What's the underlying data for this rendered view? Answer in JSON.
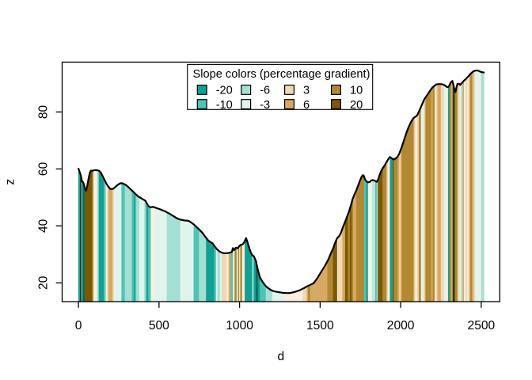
{
  "chart_data": {
    "type": "area",
    "title": "",
    "xlabel": "d",
    "ylabel": "z",
    "x_ticks": [
      0,
      500,
      1000,
      1500,
      2000,
      2500
    ],
    "y_ticks": [
      20,
      40,
      60,
      80
    ],
    "xlim": [
      -101.2,
      2615.1
    ],
    "ylim": [
      13.4,
      97.5
    ],
    "grid": false,
    "line_color": "#000000",
    "box_color": "#000000",
    "background": "#ffffff",
    "legend": {
      "title": "Slope colors (percentage gradient)",
      "position": "top-center",
      "columns": 4,
      "entries": [
        {
          "label": "-20",
          "color_id": "m20"
        },
        {
          "label": "-10",
          "color_id": "m10"
        },
        {
          "label": "-6",
          "color_id": "m6"
        },
        {
          "label": "-3",
          "color_id": "m3"
        },
        {
          "label": "3",
          "color_id": "p3"
        },
        {
          "label": "6",
          "color_id": "p6"
        },
        {
          "label": "10",
          "color_id": "p10"
        },
        {
          "label": "20",
          "color_id": "p20"
        }
      ]
    },
    "palette": {
      "m30": "#0B4237",
      "m25": "#0C6B5E",
      "m20": "#0FA294",
      "m10": "#4EC4B4",
      "m6": "#A3DFD2",
      "m3": "#E0F4ED",
      "flat": "#F9EEE0",
      "p3": "#F0D8B5",
      "p6": "#D8A963",
      "p10": "#B3892F",
      "p20": "#7C5900"
    },
    "profile": [
      [
        0,
        60.1
      ],
      [
        6,
        59.2
      ],
      [
        14,
        57.9
      ],
      [
        22,
        55.7
      ],
      [
        28,
        55.4
      ],
      [
        34,
        54.6
      ],
      [
        40,
        53.2
      ],
      [
        47,
        52.4
      ],
      [
        53,
        53.6
      ],
      [
        59,
        55.4
      ],
      [
        65,
        57.2
      ],
      [
        71,
        58.7
      ],
      [
        77,
        59.4
      ],
      [
        85,
        59.3
      ],
      [
        93,
        59.5
      ],
      [
        106,
        59.6
      ],
      [
        119,
        59.5
      ],
      [
        129,
        59.3
      ],
      [
        139,
        58.7
      ],
      [
        148,
        57.7
      ],
      [
        158,
        56.6
      ],
      [
        168,
        55.4
      ],
      [
        178,
        54.4
      ],
      [
        188,
        53.6
      ],
      [
        198,
        53.0
      ],
      [
        207,
        52.9
      ],
      [
        217,
        53.1
      ],
      [
        227,
        53.6
      ],
      [
        237,
        54.1
      ],
      [
        247,
        54.5
      ],
      [
        257,
        54.9
      ],
      [
        266,
        55.0
      ],
      [
        276,
        54.9
      ],
      [
        286,
        54.6
      ],
      [
        296,
        54.3
      ],
      [
        306,
        53.8
      ],
      [
        319,
        53.1
      ],
      [
        332,
        52.4
      ],
      [
        345,
        51.7
      ],
      [
        358,
        51.0
      ],
      [
        372,
        50.3
      ],
      [
        384,
        49.9
      ],
      [
        398,
        49.4
      ],
      [
        411,
        49.0
      ],
      [
        417,
        48.7
      ],
      [
        427,
        47.6
      ],
      [
        437,
        46.8
      ],
      [
        447,
        46.5
      ],
      [
        455,
        46.6
      ],
      [
        460,
        46.7
      ],
      [
        466,
        46.6
      ],
      [
        473,
        46.5
      ],
      [
        486,
        46.2
      ],
      [
        499,
        46.0
      ],
      [
        512,
        45.7
      ],
      [
        525,
        45.4
      ],
      [
        539,
        45.1
      ],
      [
        551,
        44.7
      ],
      [
        565,
        44.3
      ],
      [
        578,
        43.8
      ],
      [
        591,
        43.4
      ],
      [
        604,
        42.9
      ],
      [
        617,
        42.5
      ],
      [
        640,
        42.1
      ],
      [
        660,
        41.9
      ],
      [
        683,
        41.8
      ],
      [
        700,
        41.2
      ],
      [
        718,
        40.4
      ],
      [
        735,
        39.5
      ],
      [
        752,
        38.6
      ],
      [
        770,
        37.5
      ],
      [
        787,
        36.2
      ],
      [
        805,
        34.9
      ],
      [
        822,
        34.2
      ],
      [
        834,
        33.8
      ],
      [
        848,
        32.6
      ],
      [
        862,
        31.7
      ],
      [
        876,
        31.0
      ],
      [
        890,
        30.6
      ],
      [
        904,
        30.4
      ],
      [
        918,
        30.4
      ],
      [
        932,
        30.5
      ],
      [
        946,
        30.7
      ],
      [
        953,
        30.9
      ],
      [
        958,
        32.2
      ],
      [
        964,
        31.5
      ],
      [
        970,
        31.7
      ],
      [
        976,
        32.3
      ],
      [
        983,
        32.3
      ],
      [
        988,
        32.1
      ],
      [
        1000,
        33.0
      ],
      [
        1008,
        33.4
      ],
      [
        1016,
        33.4
      ],
      [
        1022,
        33.7
      ],
      [
        1029,
        34.3
      ],
      [
        1034,
        34.9
      ],
      [
        1040,
        35.7
      ],
      [
        1048,
        34.5
      ],
      [
        1055,
        33.2
      ],
      [
        1062,
        31.9
      ],
      [
        1070,
        30.6
      ],
      [
        1079,
        29.7
      ],
      [
        1089,
        29.3
      ],
      [
        1096,
        28.4
      ],
      [
        1102,
        27.6
      ],
      [
        1108,
        25.9
      ],
      [
        1115,
        24.2
      ],
      [
        1121,
        23.0
      ],
      [
        1127,
        21.9
      ],
      [
        1136,
        21.0
      ],
      [
        1146,
        20.1
      ],
      [
        1155,
        19.4
      ],
      [
        1164,
        18.8
      ],
      [
        1174,
        18.3
      ],
      [
        1184,
        17.9
      ],
      [
        1194,
        17.5
      ],
      [
        1204,
        17.2
      ],
      [
        1225,
        16.9
      ],
      [
        1246,
        16.7
      ],
      [
        1267,
        16.5
      ],
      [
        1290,
        16.4
      ],
      [
        1310,
        16.4
      ],
      [
        1328,
        16.6
      ],
      [
        1343,
        16.8
      ],
      [
        1358,
        17.1
      ],
      [
        1373,
        17.4
      ],
      [
        1387,
        17.8
      ],
      [
        1402,
        18.2
      ],
      [
        1416,
        18.7
      ],
      [
        1431,
        19.1
      ],
      [
        1446,
        19.5
      ],
      [
        1460,
        19.9
      ],
      [
        1482,
        21.6
      ],
      [
        1510,
        24.2
      ],
      [
        1530,
        26.0
      ],
      [
        1551,
        28.2
      ],
      [
        1570,
        30.8
      ],
      [
        1580,
        32.0
      ],
      [
        1590,
        33.6
      ],
      [
        1600,
        35.0
      ],
      [
        1607,
        35.8
      ],
      [
        1617,
        36.3
      ],
      [
        1628,
        37.4
      ],
      [
        1638,
        39.0
      ],
      [
        1649,
        40.6
      ],
      [
        1659,
        42.0
      ],
      [
        1669,
        43.5
      ],
      [
        1680,
        45.2
      ],
      [
        1690,
        47.0
      ],
      [
        1701,
        49.3
      ],
      [
        1713,
        51.0
      ],
      [
        1725,
        52.5
      ],
      [
        1736,
        54.2
      ],
      [
        1748,
        56.0
      ],
      [
        1757,
        57.2
      ],
      [
        1764,
        57.8
      ],
      [
        1770,
        57.7
      ],
      [
        1775,
        56.9
      ],
      [
        1781,
        56.1
      ],
      [
        1790,
        55.5
      ],
      [
        1799,
        55.3
      ],
      [
        1808,
        55.4
      ],
      [
        1816,
        55.9
      ],
      [
        1826,
        56.1
      ],
      [
        1835,
        56.0
      ],
      [
        1844,
        55.7
      ],
      [
        1852,
        55.5
      ],
      [
        1861,
        56.4
      ],
      [
        1870,
        58.0
      ],
      [
        1880,
        59.4
      ],
      [
        1890,
        60.4
      ],
      [
        1900,
        61.2
      ],
      [
        1912,
        62.4
      ],
      [
        1925,
        63.6
      ],
      [
        1933,
        64.2
      ],
      [
        1941,
        63.9
      ],
      [
        1950,
        63.5
      ],
      [
        1958,
        63.3
      ],
      [
        1966,
        63.6
      ],
      [
        1978,
        64.1
      ],
      [
        1990,
        65.2
      ],
      [
        2005,
        67.4
      ],
      [
        2020,
        70.0
      ],
      [
        2035,
        72.6
      ],
      [
        2050,
        74.8
      ],
      [
        2065,
        76.6
      ],
      [
        2080,
        77.9
      ],
      [
        2088,
        78.2
      ],
      [
        2096,
        78.5
      ],
      [
        2103,
        78.9
      ],
      [
        2110,
        79.8
      ],
      [
        2121,
        81.1
      ],
      [
        2133,
        82.7
      ],
      [
        2146,
        84.4
      ],
      [
        2158,
        85.4
      ],
      [
        2171,
        86.5
      ],
      [
        2184,
        87.6
      ],
      [
        2197,
        88.6
      ],
      [
        2210,
        89.2
      ],
      [
        2222,
        89.7
      ],
      [
        2235,
        89.8
      ],
      [
        2248,
        89.8
      ],
      [
        2260,
        89.7
      ],
      [
        2273,
        89.4
      ],
      [
        2286,
        88.8
      ],
      [
        2292,
        88.7
      ],
      [
        2299,
        89.0
      ],
      [
        2305,
        89.7
      ],
      [
        2311,
        90.4
      ],
      [
        2321,
        90.9
      ],
      [
        2327,
        89.6
      ],
      [
        2334,
        87.9
      ],
      [
        2340,
        87.0
      ],
      [
        2346,
        88.5
      ],
      [
        2352,
        89.8
      ],
      [
        2358,
        89.9
      ],
      [
        2364,
        89.8
      ],
      [
        2369,
        89.5
      ],
      [
        2375,
        89.9
      ],
      [
        2384,
        90.4
      ],
      [
        2393,
        91.0
      ],
      [
        2403,
        91.5
      ],
      [
        2413,
        92.1
      ],
      [
        2423,
        92.7
      ],
      [
        2433,
        93.4
      ],
      [
        2443,
        93.9
      ],
      [
        2452,
        94.3
      ],
      [
        2462,
        94.5
      ],
      [
        2472,
        94.6
      ],
      [
        2482,
        94.5
      ],
      [
        2492,
        94.2
      ],
      [
        2502,
        94.0
      ],
      [
        2511,
        93.9
      ],
      [
        2516,
        93.9
      ]
    ],
    "segments": [
      [
        0,
        11,
        "m20"
      ],
      [
        11,
        21,
        "m30"
      ],
      [
        21,
        25,
        "m3"
      ],
      [
        25,
        41,
        "m25"
      ],
      [
        41,
        86,
        "p20"
      ],
      [
        86,
        94,
        "p10"
      ],
      [
        94,
        99,
        "m3"
      ],
      [
        99,
        118,
        "flat"
      ],
      [
        118,
        127,
        "m6"
      ],
      [
        127,
        158,
        "m20"
      ],
      [
        158,
        167,
        "m10"
      ],
      [
        167,
        173,
        "m6"
      ],
      [
        173,
        179,
        "flat"
      ],
      [
        179,
        187,
        "p3"
      ],
      [
        187,
        213,
        "p6"
      ],
      [
        213,
        222,
        "p3"
      ],
      [
        222,
        268,
        "m3"
      ],
      [
        268,
        289,
        "m10"
      ],
      [
        289,
        332,
        "m6"
      ],
      [
        332,
        344,
        "m10"
      ],
      [
        344,
        352,
        "m20"
      ],
      [
        352,
        360,
        "m10"
      ],
      [
        360,
        379,
        "m6"
      ],
      [
        379,
        410,
        "m3"
      ],
      [
        410,
        418,
        "m6"
      ],
      [
        418,
        425,
        "m10"
      ],
      [
        425,
        434,
        "m20"
      ],
      [
        434,
        450,
        "m10"
      ],
      [
        450,
        474,
        "flat"
      ],
      [
        474,
        549,
        "m3"
      ],
      [
        549,
        633,
        "m6"
      ],
      [
        633,
        716,
        "m3"
      ],
      [
        716,
        749,
        "m10"
      ],
      [
        749,
        793,
        "m6"
      ],
      [
        793,
        844,
        "m20"
      ],
      [
        844,
        855,
        "m10"
      ],
      [
        855,
        864,
        "m3"
      ],
      [
        864,
        879,
        "m6"
      ],
      [
        879,
        890,
        "m3"
      ],
      [
        890,
        921,
        "p3"
      ],
      [
        921,
        933,
        "flat"
      ],
      [
        933,
        947,
        "p6"
      ],
      [
        947,
        960,
        "m10"
      ],
      [
        960,
        970,
        "flat"
      ],
      [
        970,
        983,
        "p10"
      ],
      [
        983,
        991,
        "m3"
      ],
      [
        991,
        999,
        "p10"
      ],
      [
        999,
        1005,
        "m3"
      ],
      [
        1005,
        1017,
        "p10"
      ],
      [
        1017,
        1033,
        "flat"
      ],
      [
        1033,
        1079,
        "m20"
      ],
      [
        1079,
        1089,
        "m6"
      ],
      [
        1089,
        1102,
        "m20"
      ],
      [
        1102,
        1115,
        "m25"
      ],
      [
        1115,
        1127,
        "m20"
      ],
      [
        1127,
        1164,
        "m10"
      ],
      [
        1164,
        1204,
        "m6"
      ],
      [
        1204,
        1276,
        "m3"
      ],
      [
        1276,
        1393,
        "flat"
      ],
      [
        1393,
        1418,
        "p3"
      ],
      [
        1418,
        1426,
        "p6"
      ],
      [
        1426,
        1439,
        "p10"
      ],
      [
        1439,
        1546,
        "p6"
      ],
      [
        1546,
        1581,
        "p10"
      ],
      [
        1581,
        1607,
        "p20"
      ],
      [
        1607,
        1613,
        "flat"
      ],
      [
        1613,
        1639,
        "p3"
      ],
      [
        1639,
        1656,
        "p6"
      ],
      [
        1656,
        1674,
        "p20"
      ],
      [
        1674,
        1685,
        "p10"
      ],
      [
        1685,
        1697,
        "p20"
      ],
      [
        1697,
        1706,
        "p10"
      ],
      [
        1706,
        1725,
        "p6"
      ],
      [
        1725,
        1774,
        "p10"
      ],
      [
        1774,
        1787,
        "m10"
      ],
      [
        1787,
        1798,
        "m20"
      ],
      [
        1798,
        1818,
        "flat"
      ],
      [
        1818,
        1826,
        "m3"
      ],
      [
        1826,
        1833,
        "m6"
      ],
      [
        1833,
        1841,
        "m3"
      ],
      [
        1841,
        1852,
        "m10"
      ],
      [
        1852,
        1859,
        "m6"
      ],
      [
        1859,
        1889,
        "p20"
      ],
      [
        1889,
        1914,
        "p10"
      ],
      [
        1914,
        1922,
        "p3"
      ],
      [
        1922,
        1934,
        "flat"
      ],
      [
        1934,
        1952,
        "m20"
      ],
      [
        1952,
        1959,
        "p20"
      ],
      [
        1959,
        1982,
        "p10"
      ],
      [
        1982,
        1992,
        "p6"
      ],
      [
        1992,
        2001,
        "p3"
      ],
      [
        2001,
        2008,
        "p6"
      ],
      [
        2008,
        2080,
        "p10"
      ],
      [
        2080,
        2086,
        "p6"
      ],
      [
        2086,
        2091,
        "p3"
      ],
      [
        2091,
        2103,
        "flat"
      ],
      [
        2103,
        2113,
        "p3"
      ],
      [
        2113,
        2127,
        "p10"
      ],
      [
        2127,
        2144,
        "m3"
      ],
      [
        2144,
        2151,
        "p3"
      ],
      [
        2151,
        2157,
        "p6"
      ],
      [
        2157,
        2191,
        "p10"
      ],
      [
        2191,
        2200,
        "p6"
      ],
      [
        2200,
        2212,
        "p10"
      ],
      [
        2212,
        2218,
        "flat"
      ],
      [
        2218,
        2229,
        "p3"
      ],
      [
        2229,
        2250,
        "p6"
      ],
      [
        2250,
        2270,
        "p3"
      ],
      [
        2270,
        2283,
        "m3"
      ],
      [
        2283,
        2295,
        "flat"
      ],
      [
        2295,
        2305,
        "m20"
      ],
      [
        2305,
        2314,
        "p10"
      ],
      [
        2314,
        2321,
        "p6"
      ],
      [
        2321,
        2325,
        "p10"
      ],
      [
        2325,
        2335,
        "m30"
      ],
      [
        2335,
        2339,
        "p20"
      ],
      [
        2339,
        2354,
        "p10"
      ],
      [
        2354,
        2367,
        "p3"
      ],
      [
        2367,
        2377,
        "m3"
      ],
      [
        2377,
        2386,
        "m6"
      ],
      [
        2386,
        2394,
        "p6"
      ],
      [
        2394,
        2404,
        "flat"
      ],
      [
        2404,
        2415,
        "p3"
      ],
      [
        2415,
        2421,
        "flat"
      ],
      [
        2421,
        2430,
        "p3"
      ],
      [
        2430,
        2443,
        "p10"
      ],
      [
        2443,
        2454,
        "p6"
      ],
      [
        2454,
        2462,
        "p3"
      ],
      [
        2462,
        2490,
        "m3"
      ],
      [
        2490,
        2500,
        "flat"
      ],
      [
        2500,
        2517,
        "m6"
      ]
    ]
  }
}
